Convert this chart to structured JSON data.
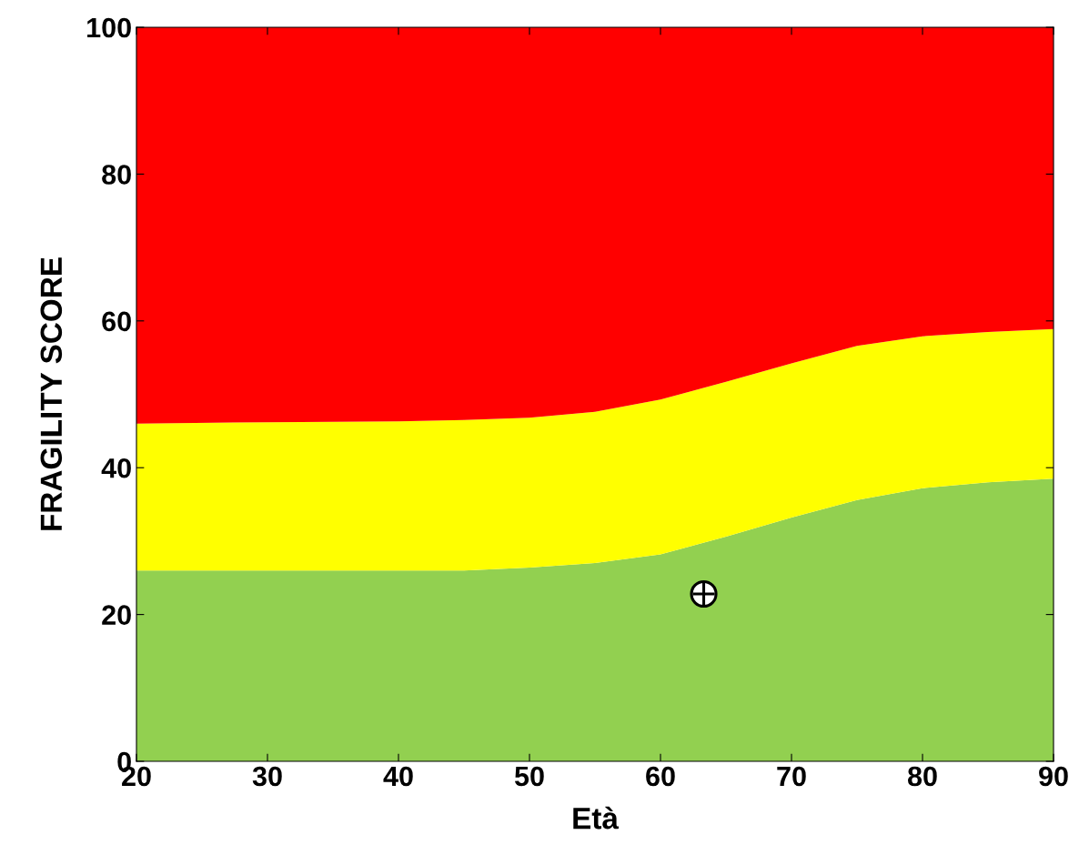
{
  "chart_data": {
    "type": "area",
    "stacked": true,
    "xlabel": "Età",
    "ylabel": "FRAGILITY SCORE",
    "x": [
      20,
      30,
      40,
      45,
      50,
      55,
      60,
      65,
      70,
      75,
      80,
      85,
      90
    ],
    "xlim": [
      20,
      90
    ],
    "ylim": [
      0,
      100
    ],
    "xticks": [
      20,
      30,
      40,
      50,
      60,
      70,
      80,
      90
    ],
    "yticks": [
      0,
      20,
      40,
      60,
      80,
      100
    ],
    "grid": false,
    "legend": false,
    "series": [
      {
        "color": "#92d050",
        "values": [
          26,
          26,
          26,
          26,
          26.4,
          27,
          28.2,
          30.6,
          33.2,
          35.6,
          37.2,
          38,
          38.5
        ]
      },
      {
        "color": "#ffff00",
        "values": [
          20,
          20.2,
          20.3,
          20.5,
          20.4,
          20.6,
          21.1,
          21.1,
          21,
          21,
          20.7,
          20.5,
          20.4
        ]
      },
      {
        "color": "#ff0000",
        "values": [
          54,
          53.8,
          53.7,
          53.5,
          53.2,
          52.4,
          50.7,
          48.3,
          45.8,
          43.4,
          42.1,
          41.5,
          41.1
        ]
      },
      {
        "type": "scatter",
        "color": "#000000",
        "x": [
          63.3
        ],
        "values": [
          22.8
        ],
        "marker": "circle"
      }
    ]
  }
}
